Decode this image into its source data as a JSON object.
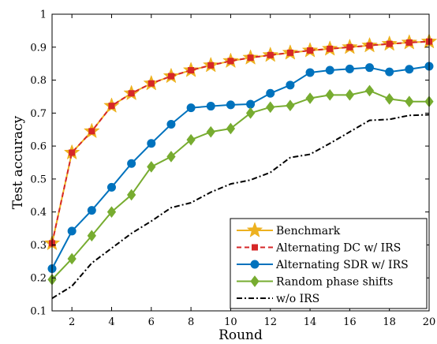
{
  "chart_data": {
    "type": "line",
    "title": "",
    "xlabel": "Round",
    "ylabel": "Test accuracy",
    "xlim": [
      1,
      20
    ],
    "ylim": [
      0.1,
      1.0
    ],
    "x_ticks": [
      2,
      4,
      6,
      8,
      10,
      12,
      14,
      16,
      18,
      20
    ],
    "y_ticks": [
      0.1,
      0.2,
      0.3,
      0.4,
      0.5,
      0.6,
      0.7,
      0.8,
      0.9,
      1
    ],
    "x_tick_labels": [
      "2",
      "4",
      "6",
      "8",
      "10",
      "12",
      "14",
      "16",
      "18",
      "20"
    ],
    "y_tick_labels": [
      "0.1",
      "0.2",
      "0.3",
      "0.4",
      "0.5",
      "0.6",
      "0.7",
      "0.8",
      "0.9",
      "1"
    ],
    "grid": false,
    "legend_position": "bottom-right",
    "x": [
      1,
      2,
      3,
      4,
      5,
      6,
      7,
      8,
      9,
      10,
      11,
      12,
      13,
      14,
      15,
      16,
      17,
      18,
      19,
      20
    ],
    "series": [
      {
        "name": "Benchmark",
        "color": "#EDB120",
        "marker": "star",
        "line": "solid",
        "values": [
          0.305,
          0.58,
          0.645,
          0.722,
          0.76,
          0.79,
          0.812,
          0.83,
          0.845,
          0.858,
          0.868,
          0.876,
          0.883,
          0.89,
          0.895,
          0.9,
          0.905,
          0.91,
          0.914,
          0.917
        ]
      },
      {
        "name": "Alternating DC w/ IRS",
        "color": "#D62728",
        "marker": "square",
        "line": "dashed",
        "values": [
          0.305,
          0.58,
          0.645,
          0.722,
          0.76,
          0.79,
          0.812,
          0.83,
          0.845,
          0.858,
          0.868,
          0.876,
          0.883,
          0.89,
          0.895,
          0.9,
          0.905,
          0.91,
          0.914,
          0.917
        ]
      },
      {
        "name": "Alternating SDR w/ IRS",
        "color": "#0072BD",
        "marker": "circle",
        "line": "solid",
        "values": [
          0.228,
          0.342,
          0.405,
          0.475,
          0.547,
          0.608,
          0.666,
          0.716,
          0.721,
          0.725,
          0.727,
          0.76,
          0.785,
          0.823,
          0.83,
          0.834,
          0.838,
          0.825,
          0.833,
          0.842
        ]
      },
      {
        "name": "Random phase shifts",
        "color": "#77AC30",
        "marker": "diamond",
        "line": "solid",
        "values": [
          0.195,
          0.258,
          0.328,
          0.4,
          0.452,
          0.537,
          0.568,
          0.619,
          0.643,
          0.653,
          0.7,
          0.718,
          0.723,
          0.745,
          0.755,
          0.755,
          0.768,
          0.743,
          0.735,
          0.735
        ]
      },
      {
        "name": "w/o IRS",
        "color": "#000000",
        "marker": "none",
        "line": "dashdot",
        "values": [
          0.138,
          0.175,
          0.245,
          0.29,
          0.335,
          0.372,
          0.413,
          0.428,
          0.46,
          0.485,
          0.497,
          0.52,
          0.565,
          0.575,
          0.608,
          0.643,
          0.678,
          0.681,
          0.693,
          0.695
        ]
      }
    ]
  }
}
